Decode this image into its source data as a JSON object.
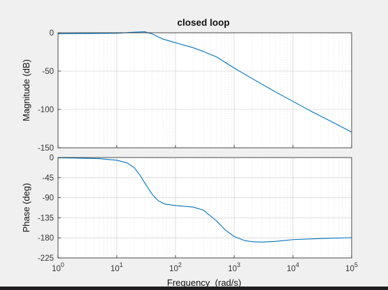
{
  "chart_data": {
    "type": "line",
    "title": "closed loop",
    "xlabel": "Frequency  (rad/s)",
    "xscale": "log",
    "xlim": [
      1,
      100000
    ],
    "x_ticks": [
      {
        "value": 1,
        "base": "10",
        "exp": "0"
      },
      {
        "value": 10,
        "base": "10",
        "exp": "1"
      },
      {
        "value": 100,
        "base": "10",
        "exp": "2"
      },
      {
        "value": 1000,
        "base": "10",
        "exp": "3"
      },
      {
        "value": 10000,
        "base": "10",
        "exp": "4"
      },
      {
        "value": 100000,
        "base": "10",
        "exp": "5"
      }
    ],
    "grid": true,
    "line_color": "#0072bd",
    "subplots": [
      {
        "id": "magnitude",
        "ylabel": "Magnitude (dB)",
        "ylim": [
          -150,
          0
        ],
        "yticks": [
          0,
          -50,
          -100,
          -150
        ],
        "series": [
          {
            "x": [
              1,
              3,
              10,
              20,
              30,
              40,
              60,
              100,
              200,
              300,
              500,
              1000,
              2000,
              5000,
              10000,
              20000,
              50000,
              100000
            ],
            "y": [
              -1.3,
              -1,
              -0.6,
              0.7,
              1.3,
              -1.5,
              -8,
              -13,
              -19.5,
              -24.5,
              -31.5,
              -46,
              -59.5,
              -77,
              -89.5,
              -102,
              -117.5,
              -129.5
            ]
          }
        ]
      },
      {
        "id": "phase",
        "ylabel": "Phase (deg)",
        "ylim": [
          -225,
          0
        ],
        "yticks": [
          0,
          -45,
          -90,
          -135,
          -180,
          -225
        ],
        "series": [
          {
            "x": [
              1,
              2,
              5,
              10,
              15,
              20,
              25,
              30,
              40,
              50,
              60,
              70,
              100,
              200,
              300,
              500,
              700,
              1000,
              1500,
              2000,
              3000,
              5000,
              10000,
              30000,
              100000
            ],
            "y": [
              -0.5,
              -1,
              -2.5,
              -6,
              -12,
              -23,
              -40,
              -57,
              -82,
              -96,
              -102,
              -105,
              -107.5,
              -111,
              -118,
              -142,
              -162,
              -177,
              -186,
              -188.5,
              -189.5,
              -188,
              -184,
              -181.5,
              -179.5
            ]
          }
        ]
      }
    ]
  }
}
